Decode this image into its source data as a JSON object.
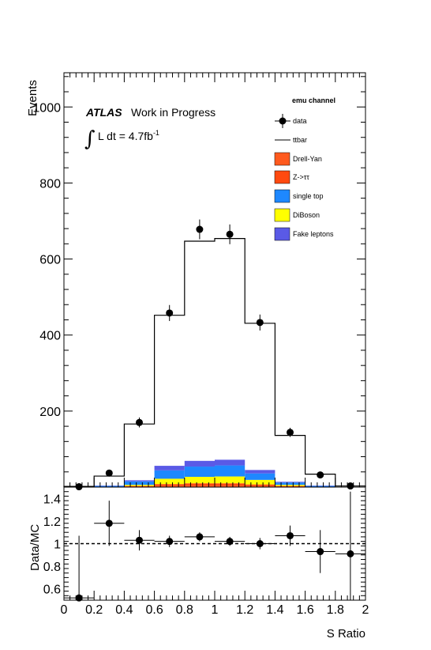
{
  "chart_data": [
    {
      "type": "bar",
      "stacked": true,
      "ylabel": "Events",
      "ylim": [
        0,
        1090
      ],
      "xlim": [
        0,
        2
      ],
      "grid": false,
      "legend_placement": "top-right",
      "legend_title": "emu channel",
      "annotation": {
        "atlas": "ATLAS",
        "work": "Work in Progress",
        "lumi_integral": "∫",
        "lumi_text": "L dt = 4.7fb",
        "lumi_sup": "-1"
      },
      "bin_edges": [
        0,
        0.2,
        0.4,
        0.6,
        0.8,
        1.0,
        1.2,
        1.4,
        1.6,
        1.8,
        2.0
      ],
      "bin_centers": [
        0.1,
        0.3,
        0.5,
        0.7,
        0.9,
        1.1,
        1.3,
        1.5,
        1.7,
        1.9
      ],
      "yticks": [
        200,
        400,
        600,
        800,
        1000
      ],
      "series": [
        {
          "name": "Drell-Yan",
          "color": "#ff5a1e",
          "values": [
            0,
            0,
            1,
            3,
            4,
            4,
            3,
            1,
            0,
            0
          ]
        },
        {
          "name": "Z->ττ",
          "color": "#ff4a10",
          "values": [
            0,
            0,
            2,
            5,
            6,
            6,
            4,
            2,
            0,
            0
          ]
        },
        {
          "name": "DiBoson",
          "color": "#ffff00",
          "values": [
            0,
            1,
            3,
            14,
            17,
            18,
            12,
            3,
            1,
            0
          ]
        },
        {
          "name": "single top",
          "color": "#1e88ff",
          "values": [
            0,
            2,
            9,
            22,
            27,
            29,
            17,
            6,
            2,
            0
          ]
        },
        {
          "name": "Fake leptons",
          "color": "#5a5ae6",
          "values": [
            0,
            1,
            3,
            12,
            15,
            15,
            9,
            2,
            1,
            0
          ]
        },
        {
          "name": "ttbar",
          "color": "#000000",
          "values": [
            2,
            25,
            148,
            396,
            578,
            582,
            386,
            122,
            30,
            3
          ]
        }
      ],
      "data_points": {
        "name": "data",
        "values": [
          1,
          37,
          170,
          458,
          678,
          665,
          433,
          144,
          32,
          3
        ],
        "errors": [
          1,
          6,
          13,
          21,
          26,
          26,
          21,
          12,
          6,
          2
        ]
      },
      "legend_order": [
        "data",
        "ttbar",
        "Drell-Yan",
        "Z->ττ",
        "single top",
        "DiBoson",
        "Fake leptons"
      ]
    },
    {
      "type": "scatter",
      "xlabel": "S Ratio",
      "ylabel": "Data/MC",
      "xlim": [
        0,
        2
      ],
      "ylim": [
        0.5,
        1.5
      ],
      "grid": false,
      "reference_line": 1,
      "xticks": [
        "0",
        "0.2",
        "0.4",
        "0.6",
        "0.8",
        "1",
        "1.2",
        "1.4",
        "1.6",
        "1.8",
        "2"
      ],
      "yticks": [
        "0.6",
        "0.8",
        "1",
        "1.2",
        "1.4"
      ],
      "x": [
        0.1,
        0.3,
        0.5,
        0.7,
        0.9,
        1.1,
        1.3,
        1.5,
        1.7,
        1.9
      ],
      "y": [
        0.52,
        1.18,
        1.03,
        1.02,
        1.06,
        1.02,
        1.0,
        1.07,
        0.93,
        0.91
      ],
      "yerr": [
        0.55,
        0.2,
        0.09,
        0.05,
        0.04,
        0.04,
        0.05,
        0.09,
        0.19,
        0.55
      ]
    }
  ]
}
